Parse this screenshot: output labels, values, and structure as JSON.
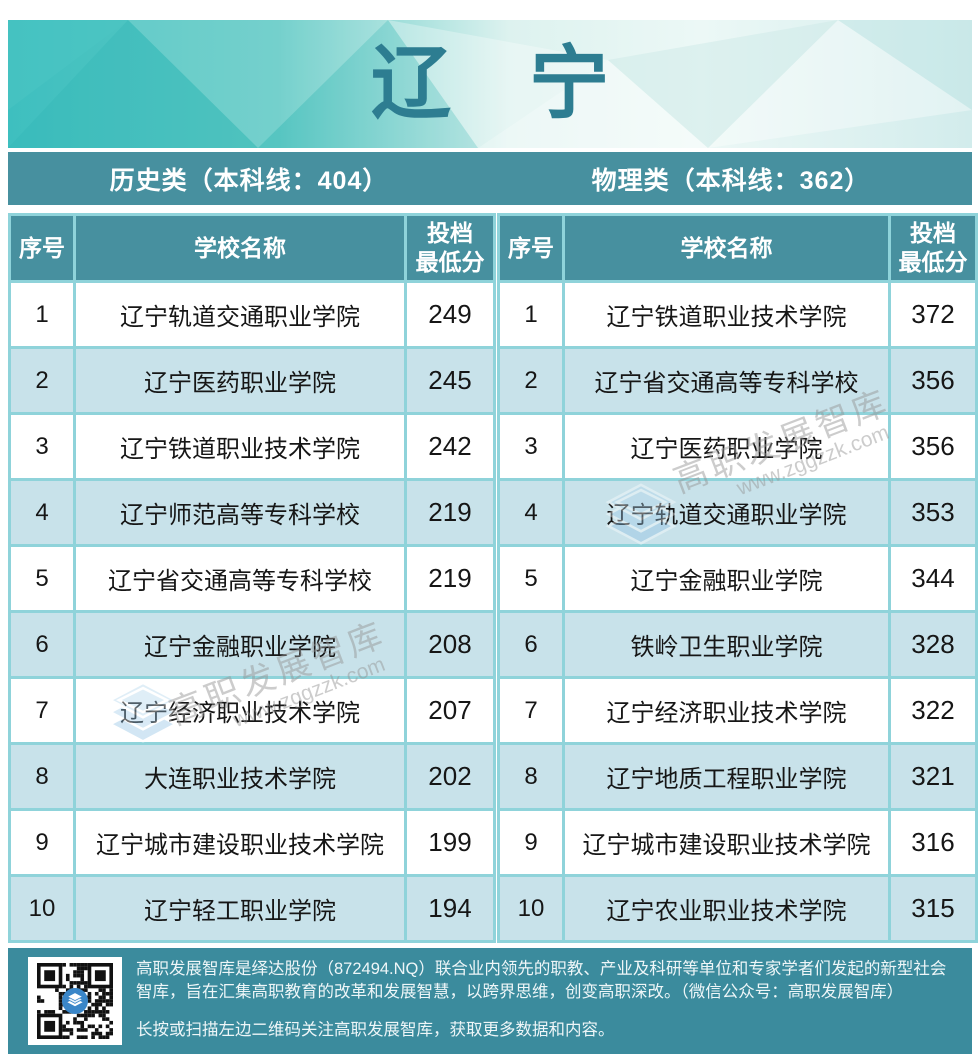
{
  "page": {
    "title": "辽 宁"
  },
  "category_bands": [
    {
      "label": "历史类（本科线：404）"
    },
    {
      "label": "物理类（本科线：362）"
    }
  ],
  "table_headers": {
    "num": "序号",
    "school": "学校名称",
    "score_line1": "投档",
    "score_line2": "最低分"
  },
  "tables": [
    {
      "rows": [
        {
          "num": "1",
          "school": "辽宁轨道交通职业学院",
          "score": "249"
        },
        {
          "num": "2",
          "school": "辽宁医药职业学院",
          "score": "245"
        },
        {
          "num": "3",
          "school": "辽宁铁道职业技术学院",
          "score": "242"
        },
        {
          "num": "4",
          "school": "辽宁师范高等专科学校",
          "score": "219"
        },
        {
          "num": "5",
          "school": "辽宁省交通高等专科学校",
          "score": "219"
        },
        {
          "num": "6",
          "school": "辽宁金融职业学院",
          "score": "208"
        },
        {
          "num": "7",
          "school": "辽宁经济职业技术学院",
          "score": "207"
        },
        {
          "num": "8",
          "school": "大连职业技术学院",
          "score": "202"
        },
        {
          "num": "9",
          "school": "辽宁城市建设职业技术学院",
          "score": "199"
        },
        {
          "num": "10",
          "school": "辽宁轻工职业学院",
          "score": "194"
        }
      ]
    },
    {
      "rows": [
        {
          "num": "1",
          "school": "辽宁铁道职业技术学院",
          "score": "372"
        },
        {
          "num": "2",
          "school": "辽宁省交通高等专科学校",
          "score": "356"
        },
        {
          "num": "3",
          "school": "辽宁医药职业学院",
          "score": "356"
        },
        {
          "num": "4",
          "school": "辽宁轨道交通职业学院",
          "score": "353"
        },
        {
          "num": "5",
          "school": "辽宁金融职业学院",
          "score": "344"
        },
        {
          "num": "6",
          "school": "铁岭卫生职业学院",
          "score": "328"
        },
        {
          "num": "7",
          "school": "辽宁经济职业技术学院",
          "score": "322"
        },
        {
          "num": "8",
          "school": "辽宁地质工程职业学院",
          "score": "321"
        },
        {
          "num": "9",
          "school": "辽宁城市建设职业技术学院",
          "score": "316"
        },
        {
          "num": "10",
          "school": "辽宁农业职业技术学院",
          "score": "315"
        }
      ]
    }
  ],
  "watermark": {
    "brand": "高职发展智库",
    "url": "www.zggzzk.com"
  },
  "footer": {
    "para1": "高职发展智库是绎达股份（872494.NQ）联合业内领先的职教、产业及科研等单位和专家学者们发起的新型社会智库，旨在汇集高职教育的改革和发展智慧，以跨界思维，创变高职深改。（微信公众号：高职发展智库）",
    "para2": "长按或扫描左边二维码关注高职发展智库，获取更多数据和内容。"
  },
  "colors": {
    "band_teal": "#47909f",
    "footer_teal": "#3b8b9d",
    "row_alt": "#c8e2ea",
    "table_border": "#8fd3da",
    "title_teal": "#2d7d91",
    "hero_turquoise": "#3ebfbf"
  }
}
